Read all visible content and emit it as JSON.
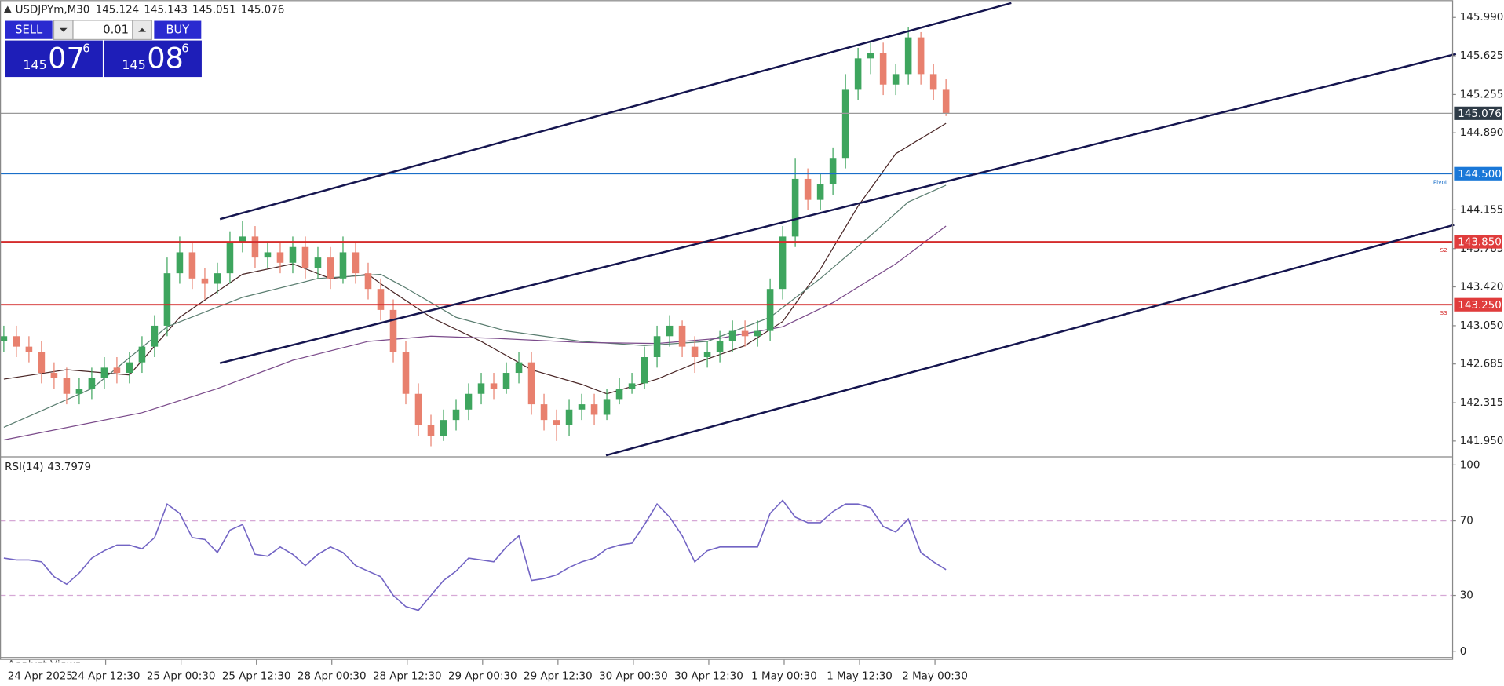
{
  "header": {
    "symbol": "USDJPYm,M30",
    "ohlc": [
      145.124,
      145.143,
      145.051,
      145.076
    ]
  },
  "trade_panel": {
    "sell_label": "SELL",
    "buy_label": "BUY",
    "lot": 0.01,
    "sell_price": {
      "big": "145",
      "main": "07",
      "sup": "6"
    },
    "buy_price": {
      "big": "145",
      "main": "08",
      "sup": "6"
    }
  },
  "time_labels": [
    "24 Apr 2025",
    "24 Apr 12:30",
    "25 Apr 00:30",
    "25 Apr 12:30",
    "28 Apr 00:30",
    "28 Apr 12:30",
    "29 Apr 00:30",
    "29 Apr 12:30",
    "30 Apr 00:30",
    "30 Apr 12:30",
    "1 May 00:30",
    "1 May 12:30",
    "2 May 00:30"
  ],
  "bottom_tab": "Analyst Views",
  "chart_data": [
    {
      "type": "candlestick",
      "ylim": [
        141.813,
        146.155
      ],
      "yticks": [
        {
          "value": 145.99,
          "label": "145.990"
        },
        145.625,
        145.255,
        {
          "value": 144.89,
          "label": "144.890"
        },
        144.155,
        143.785,
        {
          "value": 143.42,
          "label": "143.420"
        },
        {
          "value": 143.05,
          "label": "143.050"
        },
        142.685,
        142.315,
        {
          "value": 141.95,
          "label": "141.950"
        }
      ],
      "up_color": "#3ea55e",
      "down_color": "#e8806e",
      "candles": [
        [
          142.9,
          143.05,
          142.8,
          142.95
        ],
        [
          142.95,
          143.05,
          142.75,
          142.85
        ],
        [
          142.85,
          142.95,
          142.7,
          142.8
        ],
        [
          142.8,
          142.9,
          142.5,
          142.6
        ],
        [
          142.6,
          142.7,
          142.45,
          142.55
        ],
        [
          142.55,
          142.65,
          142.3,
          142.4
        ],
        [
          142.4,
          142.55,
          142.3,
          142.45
        ],
        [
          142.45,
          142.65,
          142.35,
          142.55
        ],
        [
          142.55,
          142.75,
          142.45,
          142.65
        ],
        [
          142.65,
          142.75,
          142.5,
          142.6
        ],
        [
          142.6,
          142.8,
          142.5,
          142.7
        ],
        [
          142.7,
          142.95,
          142.6,
          142.85
        ],
        [
          142.85,
          143.15,
          142.75,
          143.05
        ],
        [
          143.05,
          143.7,
          142.95,
          143.55
        ],
        [
          143.55,
          143.9,
          143.45,
          143.75
        ],
        [
          143.75,
          143.85,
          143.4,
          143.5
        ],
        [
          143.5,
          143.6,
          143.3,
          143.45
        ],
        [
          143.45,
          143.65,
          143.35,
          143.55
        ],
        [
          143.55,
          143.95,
          143.45,
          143.85
        ],
        [
          143.85,
          144.05,
          143.75,
          143.9
        ],
        [
          143.9,
          144.0,
          143.6,
          143.7
        ],
        [
          143.7,
          143.85,
          143.6,
          143.75
        ],
        [
          143.75,
          143.85,
          143.55,
          143.65
        ],
        [
          143.65,
          143.9,
          143.55,
          143.8
        ],
        [
          143.8,
          143.9,
          143.5,
          143.6
        ],
        [
          143.6,
          143.8,
          143.5,
          143.7
        ],
        [
          143.7,
          143.8,
          143.4,
          143.5
        ],
        [
          143.5,
          143.9,
          143.45,
          143.75
        ],
        [
          143.75,
          143.85,
          143.45,
          143.55
        ],
        [
          143.55,
          143.65,
          143.3,
          143.4
        ],
        [
          143.4,
          143.5,
          143.1,
          143.2
        ],
        [
          143.2,
          143.3,
          142.7,
          142.8
        ],
        [
          142.8,
          142.9,
          142.3,
          142.4
        ],
        [
          142.4,
          142.5,
          142.0,
          142.1
        ],
        [
          142.1,
          142.2,
          141.9,
          142.0
        ],
        [
          142.0,
          142.25,
          141.95,
          142.15
        ],
        [
          142.15,
          142.35,
          142.05,
          142.25
        ],
        [
          142.25,
          142.5,
          142.15,
          142.4
        ],
        [
          142.4,
          142.6,
          142.3,
          142.5
        ],
        [
          142.5,
          142.6,
          142.35,
          142.45
        ],
        [
          142.45,
          142.7,
          142.4,
          142.6
        ],
        [
          142.6,
          142.8,
          142.5,
          142.7
        ],
        [
          142.7,
          142.8,
          142.2,
          142.3
        ],
        [
          142.3,
          142.4,
          142.05,
          142.15
        ],
        [
          142.15,
          142.25,
          141.95,
          142.1
        ],
        [
          142.1,
          142.35,
          142.0,
          142.25
        ],
        [
          142.25,
          142.4,
          142.15,
          142.3
        ],
        [
          142.3,
          142.4,
          142.1,
          142.2
        ],
        [
          142.2,
          142.45,
          142.15,
          142.35
        ],
        [
          142.35,
          142.55,
          142.3,
          142.45
        ],
        [
          142.45,
          142.6,
          142.4,
          142.5
        ],
        [
          142.5,
          142.85,
          142.45,
          142.75
        ],
        [
          142.75,
          143.05,
          142.65,
          142.95
        ],
        [
          142.95,
          143.15,
          142.85,
          143.05
        ],
        [
          143.05,
          143.1,
          142.75,
          142.85
        ],
        [
          142.85,
          142.95,
          142.6,
          142.75
        ],
        [
          142.75,
          142.9,
          142.65,
          142.8
        ],
        [
          142.8,
          143.0,
          142.7,
          142.9
        ],
        [
          142.9,
          143.1,
          142.8,
          143.0
        ],
        [
          143.0,
          143.1,
          142.85,
          142.95
        ],
        [
          142.95,
          143.1,
          142.85,
          143.0
        ],
        [
          143.0,
          143.5,
          142.9,
          143.4
        ],
        [
          143.4,
          144.0,
          143.3,
          143.9
        ],
        [
          143.9,
          144.65,
          143.8,
          144.45
        ],
        [
          144.45,
          144.55,
          144.15,
          144.25
        ],
        [
          144.25,
          144.5,
          144.15,
          144.4
        ],
        [
          144.4,
          144.75,
          144.3,
          144.65
        ],
        [
          144.65,
          145.45,
          144.55,
          145.3
        ],
        [
          145.3,
          145.7,
          145.2,
          145.6
        ],
        [
          145.6,
          145.75,
          145.45,
          145.65
        ],
        [
          145.65,
          145.75,
          145.25,
          145.35
        ],
        [
          145.35,
          145.55,
          145.25,
          145.45
        ],
        [
          145.45,
          145.9,
          145.35,
          145.8
        ],
        [
          145.8,
          145.85,
          145.35,
          145.45
        ],
        [
          145.45,
          145.55,
          145.2,
          145.3
        ],
        [
          145.3,
          145.4,
          145.05,
          145.076
        ]
      ],
      "moving_averages": [
        {
          "color": "#4a2626",
          "x": [
            0,
            5,
            10,
            14,
            19,
            23,
            26,
            29,
            30,
            34,
            38,
            42,
            46,
            48,
            52,
            55,
            59,
            62,
            65,
            68,
            71,
            75
          ],
          "values": [
            142.54,
            142.63,
            142.58,
            143.13,
            143.54,
            143.64,
            143.5,
            143.54,
            143.45,
            143.13,
            142.9,
            142.63,
            142.49,
            142.4,
            142.54,
            142.69,
            142.86,
            143.09,
            143.59,
            144.19,
            144.69,
            144.98
          ]
        },
        {
          "color": "#5a7d70",
          "x": [
            0,
            7,
            13,
            19,
            25,
            30,
            32,
            36,
            40,
            46,
            51,
            56,
            61,
            65,
            69,
            72,
            75
          ],
          "values": [
            142.08,
            142.45,
            143.04,
            143.32,
            143.5,
            143.54,
            143.41,
            143.13,
            143.0,
            142.9,
            142.86,
            142.9,
            143.13,
            143.5,
            143.91,
            144.23,
            144.39
          ]
        },
        {
          "color": "#7a4a8a",
          "x": [
            0,
            11,
            17,
            23,
            29,
            34,
            39,
            46,
            52,
            57,
            62,
            66,
            71,
            75
          ],
          "values": [
            141.96,
            142.22,
            142.45,
            142.72,
            142.9,
            142.95,
            142.93,
            142.89,
            142.88,
            142.93,
            143.04,
            143.27,
            143.64,
            144.0
          ]
        }
      ],
      "levels": [
        {
          "price": 145.076,
          "color": "#9a9a9a",
          "box": "#2e3b47"
        },
        {
          "price": {
            "value": 144.5,
            "label": "144.500"
          },
          "name": "Pivot",
          "color": "#1a6fc9",
          "box": "#1a78d8"
        },
        {
          "price": {
            "value": 143.85,
            "label": "143.850"
          },
          "name": "S2",
          "color": "#d42c2c",
          "box": "#e03c3c"
        },
        {
          "price": {
            "value": 143.25,
            "label": "143.250"
          },
          "name": "S3",
          "color": "#d42c2c",
          "box": "#e03c3c"
        }
      ]
    },
    {
      "type": "line",
      "title": "RSI(14)",
      "ylim": [
        -3.6,
        103.6
      ],
      "yticks": [
        0,
        30,
        70,
        100
      ],
      "levels": [
        30,
        70
      ],
      "color": "#7264c4",
      "values": [
        50,
        49,
        49,
        48,
        40,
        36,
        42,
        50,
        54,
        57,
        57,
        55,
        61,
        79,
        74,
        61,
        60,
        53,
        65,
        68,
        52,
        51,
        56,
        52,
        46,
        52,
        56,
        53,
        46,
        43,
        40,
        30,
        24,
        22,
        30,
        38,
        43,
        50,
        49,
        48,
        56,
        62,
        38,
        39,
        41,
        45,
        48,
        50,
        55,
        57,
        58,
        68,
        79,
        72,
        62,
        48,
        54,
        56,
        56,
        56,
        56,
        74,
        81,
        72,
        69,
        69,
        75,
        79,
        79,
        77,
        67,
        64,
        71,
        53,
        48,
        43.7979
      ]
    }
  ]
}
